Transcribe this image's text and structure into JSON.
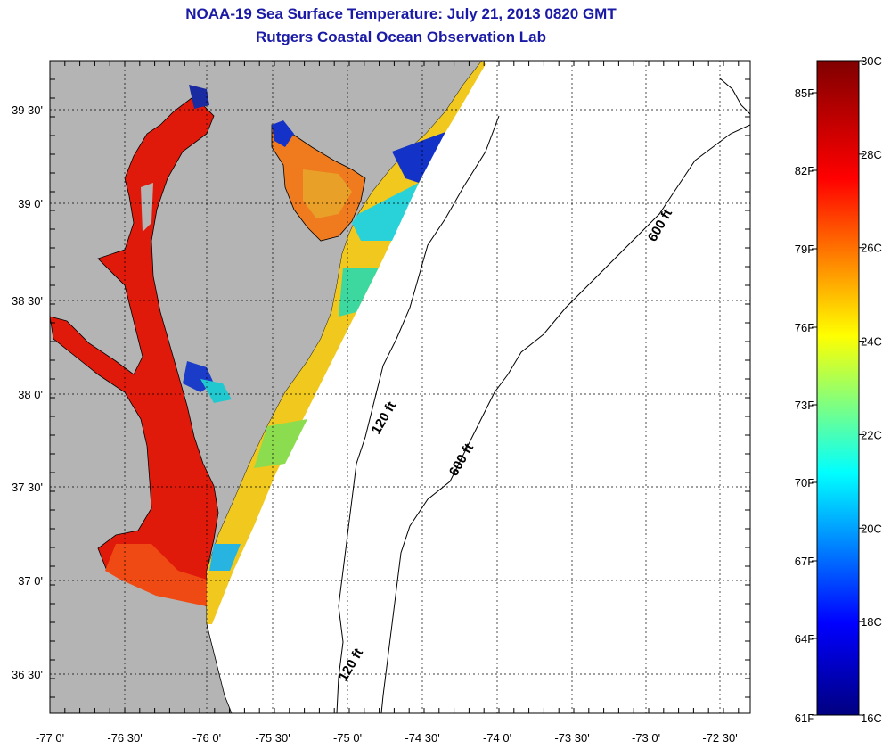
{
  "title": "NOAA-19 Sea Surface Temperature:  July 21, 2013 0820 GMT",
  "subtitle": "Rutgers Coastal Ocean Observation Lab",
  "map": {
    "lat_ticks": [
      "39 30'",
      "39 0'",
      "38 30'",
      "38 0'",
      "37 30'",
      "37 0'",
      "36 30'"
    ],
    "lon_ticks": [
      "-77 0'",
      "-76 30'",
      "-76 0'",
      "-75 30'",
      "-75 0'",
      "-74 30'",
      "-74 0'",
      "-73 30'",
      "-73 0'",
      "-72 30'"
    ],
    "contour_labels": [
      "120 ft",
      "600 ft",
      "120 ft",
      "600 ft"
    ],
    "land_color": "#b4b4b4",
    "ocean_color": "#ffffff"
  },
  "colorbar": {
    "celsius_labels": [
      "30C",
      "28C",
      "26C",
      "24C",
      "22C",
      "20C",
      "18C",
      "16C"
    ],
    "fahrenheit_labels": [
      "85F",
      "82F",
      "79F",
      "76F",
      "73F",
      "70F",
      "67F",
      "64F",
      "61F"
    ],
    "colors": [
      "#800000",
      "#ff0000",
      "#ffff00",
      "#00ffff",
      "#0000ff",
      "#000080"
    ]
  }
}
